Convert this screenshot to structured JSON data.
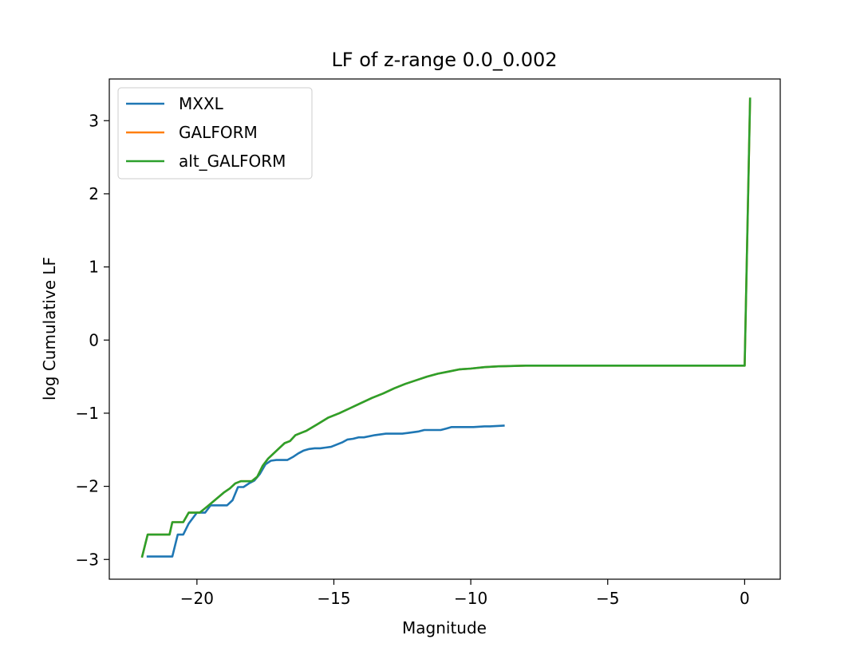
{
  "chart_data": {
    "type": "line",
    "title": "LF of z-range 0.0_0.002",
    "xlabel": "Magnitude",
    "ylabel": "log Cumulative LF",
    "xlim": [
      -23.2,
      1.3
    ],
    "ylim": [
      -3.27,
      3.57
    ],
    "xticks": [
      -20,
      -15,
      -10,
      -5,
      0
    ],
    "xtick_labels": [
      "−20",
      "−15",
      "−10",
      "−5",
      "0"
    ],
    "yticks": [
      -3,
      -2,
      -1,
      0,
      1,
      2,
      3
    ],
    "ytick_labels": [
      "−3",
      "−2",
      "−1",
      "0",
      "1",
      "2",
      "3"
    ],
    "grid": false,
    "legend_position": "upper left",
    "series": [
      {
        "name": "MXXL",
        "color": "#1f77b4",
        "x": [
          -21.8,
          -20.9,
          -20.7,
          -20.5,
          -20.3,
          -20.0,
          -19.7,
          -19.5,
          -19.3,
          -18.9,
          -18.7,
          -18.5,
          -18.3,
          -18.1,
          -17.9,
          -17.7,
          -17.5,
          -17.3,
          -17.1,
          -16.9,
          -16.7,
          -16.5,
          -16.3,
          -16.1,
          -15.9,
          -15.7,
          -15.5,
          -15.3,
          -15.1,
          -14.9,
          -14.7,
          -14.5,
          -14.3,
          -14.1,
          -13.9,
          -13.5,
          -13.1,
          -12.5,
          -12.3,
          -11.9,
          -11.7,
          -11.5,
          -11.1,
          -10.9,
          -10.7,
          -10.3,
          -9.9,
          -9.5,
          -9.3,
          -8.8
        ],
        "y": [
          -2.96,
          -2.96,
          -2.66,
          -2.66,
          -2.51,
          -2.36,
          -2.36,
          -2.26,
          -2.26,
          -2.26,
          -2.19,
          -2.01,
          -2.01,
          -1.96,
          -1.92,
          -1.83,
          -1.7,
          -1.65,
          -1.64,
          -1.64,
          -1.64,
          -1.6,
          -1.55,
          -1.51,
          -1.49,
          -1.48,
          -1.48,
          -1.47,
          -1.46,
          -1.43,
          -1.4,
          -1.36,
          -1.35,
          -1.33,
          -1.33,
          -1.3,
          -1.28,
          -1.28,
          -1.27,
          -1.25,
          -1.23,
          -1.23,
          -1.23,
          -1.21,
          -1.19,
          -1.19,
          -1.19,
          -1.18,
          -1.18,
          -1.17
        ]
      },
      {
        "name": "GALFORM",
        "color": "#ff7f0e",
        "x": [
          -22.0,
          -21.8,
          -21.0,
          -20.9,
          -20.5,
          -20.3,
          -19.9,
          -19.6,
          -19.0,
          -18.8,
          -18.6,
          -18.4,
          -18.0,
          -17.8,
          -17.6,
          -17.4,
          -17.2,
          -17.0,
          -16.8,
          -16.6,
          -16.4,
          -16.0,
          -15.6,
          -15.2,
          -14.8,
          -14.4,
          -14.0,
          -13.6,
          -13.2,
          -12.8,
          -12.4,
          -12.0,
          -11.6,
          -11.2,
          -10.8,
          -10.4,
          -10.0,
          -9.5,
          -9.0,
          -8.0,
          -7.0,
          -5.0,
          -2.0,
          0.0,
          0.2
        ],
        "y": [
          -2.96,
          -2.66,
          -2.66,
          -2.49,
          -2.49,
          -2.36,
          -2.36,
          -2.27,
          -2.08,
          -2.03,
          -1.96,
          -1.93,
          -1.93,
          -1.87,
          -1.72,
          -1.62,
          -1.55,
          -1.48,
          -1.41,
          -1.38,
          -1.3,
          -1.24,
          -1.15,
          -1.06,
          -1.0,
          -0.93,
          -0.86,
          -0.79,
          -0.73,
          -0.66,
          -0.6,
          -0.55,
          -0.5,
          -0.46,
          -0.43,
          -0.4,
          -0.39,
          -0.37,
          -0.36,
          -0.35,
          -0.35,
          -0.35,
          -0.35,
          -0.35,
          3.3
        ]
      },
      {
        "name": "alt_GALFORM",
        "color": "#2ca02c",
        "x": [
          -22.0,
          -21.8,
          -21.0,
          -20.9,
          -20.5,
          -20.3,
          -19.9,
          -19.6,
          -19.0,
          -18.8,
          -18.6,
          -18.4,
          -18.0,
          -17.8,
          -17.6,
          -17.4,
          -17.2,
          -17.0,
          -16.8,
          -16.6,
          -16.4,
          -16.0,
          -15.6,
          -15.2,
          -14.8,
          -14.4,
          -14.0,
          -13.6,
          -13.2,
          -12.8,
          -12.4,
          -12.0,
          -11.6,
          -11.2,
          -10.8,
          -10.4,
          -10.0,
          -9.5,
          -9.0,
          -8.0,
          -7.0,
          -5.0,
          -2.0,
          0.0,
          0.2
        ],
        "y": [
          -2.96,
          -2.66,
          -2.66,
          -2.49,
          -2.49,
          -2.36,
          -2.36,
          -2.27,
          -2.08,
          -2.03,
          -1.96,
          -1.93,
          -1.93,
          -1.87,
          -1.72,
          -1.62,
          -1.55,
          -1.48,
          -1.41,
          -1.38,
          -1.3,
          -1.24,
          -1.15,
          -1.06,
          -1.0,
          -0.93,
          -0.86,
          -0.79,
          -0.73,
          -0.66,
          -0.6,
          -0.55,
          -0.5,
          -0.46,
          -0.43,
          -0.4,
          -0.39,
          -0.37,
          -0.36,
          -0.35,
          -0.35,
          -0.35,
          -0.35,
          -0.35,
          3.3
        ]
      }
    ]
  }
}
